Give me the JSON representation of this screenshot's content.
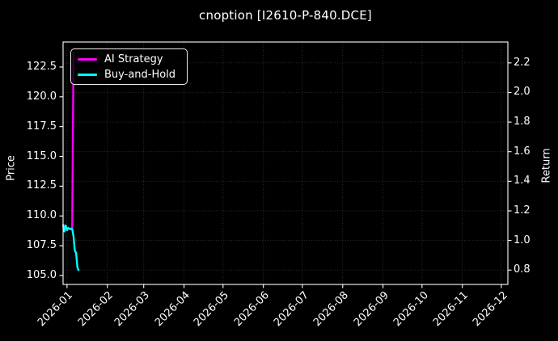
{
  "title": "cnoption [I2610-P-840.DCE]",
  "chart_data": {
    "type": "line",
    "title": "cnoption [I2610-P-840.DCE]",
    "background_color": "#000000",
    "text_color": "#ffffff",
    "grid_color": "#373737",
    "spine_color": "#ffffff",
    "grid": true,
    "legend_position": "upper left",
    "left_axis": {
      "label": "Price",
      "tick_labels": [
        "122.5",
        "120.0",
        "117.5",
        "115.0",
        "112.5",
        "110.0",
        "107.5",
        "105.0"
      ],
      "ylim": [
        104.25,
        124.6
      ]
    },
    "right_axis": {
      "label": "Return",
      "tick_labels": [
        "2.2",
        "2.0",
        "1.8",
        "1.6",
        "1.4",
        "1.2",
        "1.0",
        "0.8"
      ],
      "ylim": [
        0.703,
        2.341
      ]
    },
    "x_axis": {
      "tick_labels": [
        "2026-01",
        "2026-02",
        "2026-03",
        "2026-04",
        "2026-05",
        "2026-06",
        "2026-07",
        "2026-08",
        "2026-09",
        "2026-10",
        "2026-11",
        "2026-12"
      ],
      "tick_dates": [
        "2026-01-01",
        "2026-02-01",
        "2026-03-01",
        "2026-04-01",
        "2026-05-01",
        "2026-06-01",
        "2026-07-01",
        "2026-08-01",
        "2026-09-01",
        "2026-10-01",
        "2026-11-01",
        "2026-12-01"
      ],
      "xlim": [
        "2025-12-29",
        "2026-12-06"
      ]
    },
    "series": [
      {
        "name": "AI Strategy",
        "color": "#ff00ff",
        "axis": "left",
        "points": [
          [
            "2025-12-29",
            109.3
          ],
          [
            "2025-12-30",
            108.7
          ],
          [
            "2025-12-31",
            109.2
          ],
          [
            "2026-01-01",
            108.8
          ],
          [
            "2026-01-02",
            109.0
          ],
          [
            "2026-01-03",
            108.9
          ],
          [
            "2026-01-05",
            109.0
          ],
          [
            "2026-01-06",
            123.8
          ]
        ]
      },
      {
        "name": "Buy-and-Hold",
        "color": "#00ffff",
        "axis": "left",
        "points": [
          [
            "2025-12-29",
            109.3
          ],
          [
            "2025-12-30",
            108.7
          ],
          [
            "2025-12-31",
            109.2
          ],
          [
            "2026-01-01",
            108.8
          ],
          [
            "2026-01-02",
            109.0
          ],
          [
            "2026-01-03",
            108.9
          ],
          [
            "2026-01-05",
            108.9
          ],
          [
            "2026-01-06",
            108.3
          ],
          [
            "2026-01-07",
            107.1
          ],
          [
            "2026-01-08",
            106.9
          ],
          [
            "2026-01-09",
            105.7
          ],
          [
            "2026-01-10",
            105.4
          ]
        ]
      }
    ]
  }
}
